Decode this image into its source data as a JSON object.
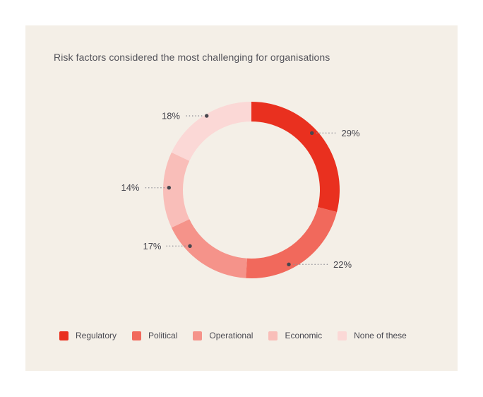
{
  "page": {
    "background": "#FFFFFF",
    "card_background": "#F4EFE7"
  },
  "title": "Risk factors considered the most challenging for organisations",
  "chart_data": {
    "type": "pie",
    "subtype": "donut",
    "title": "Risk factors considered the most challenging for organisations",
    "categories": [
      "Regulatory",
      "Political",
      "Operational",
      "Economic",
      "None of these"
    ],
    "values": [
      29,
      22,
      17,
      14,
      18
    ],
    "display_labels": [
      "29%",
      "22%",
      "17%",
      "14%",
      "18%"
    ],
    "unit": "%",
    "colors": [
      "#E9301F",
      "#F1695C",
      "#F5938A",
      "#F9BEB9",
      "#FBD8D6"
    ],
    "start_angle_deg": 0,
    "direction": "clockwise",
    "legend_position": "bottom",
    "label_style": "outside-with-dotted-leader"
  },
  "colors": {
    "title_text": "#53535A",
    "label_text": "#45454D",
    "legend_text": "#4A4A52",
    "leader_line": "#8F8F96",
    "marker_dot": "#47474E"
  }
}
